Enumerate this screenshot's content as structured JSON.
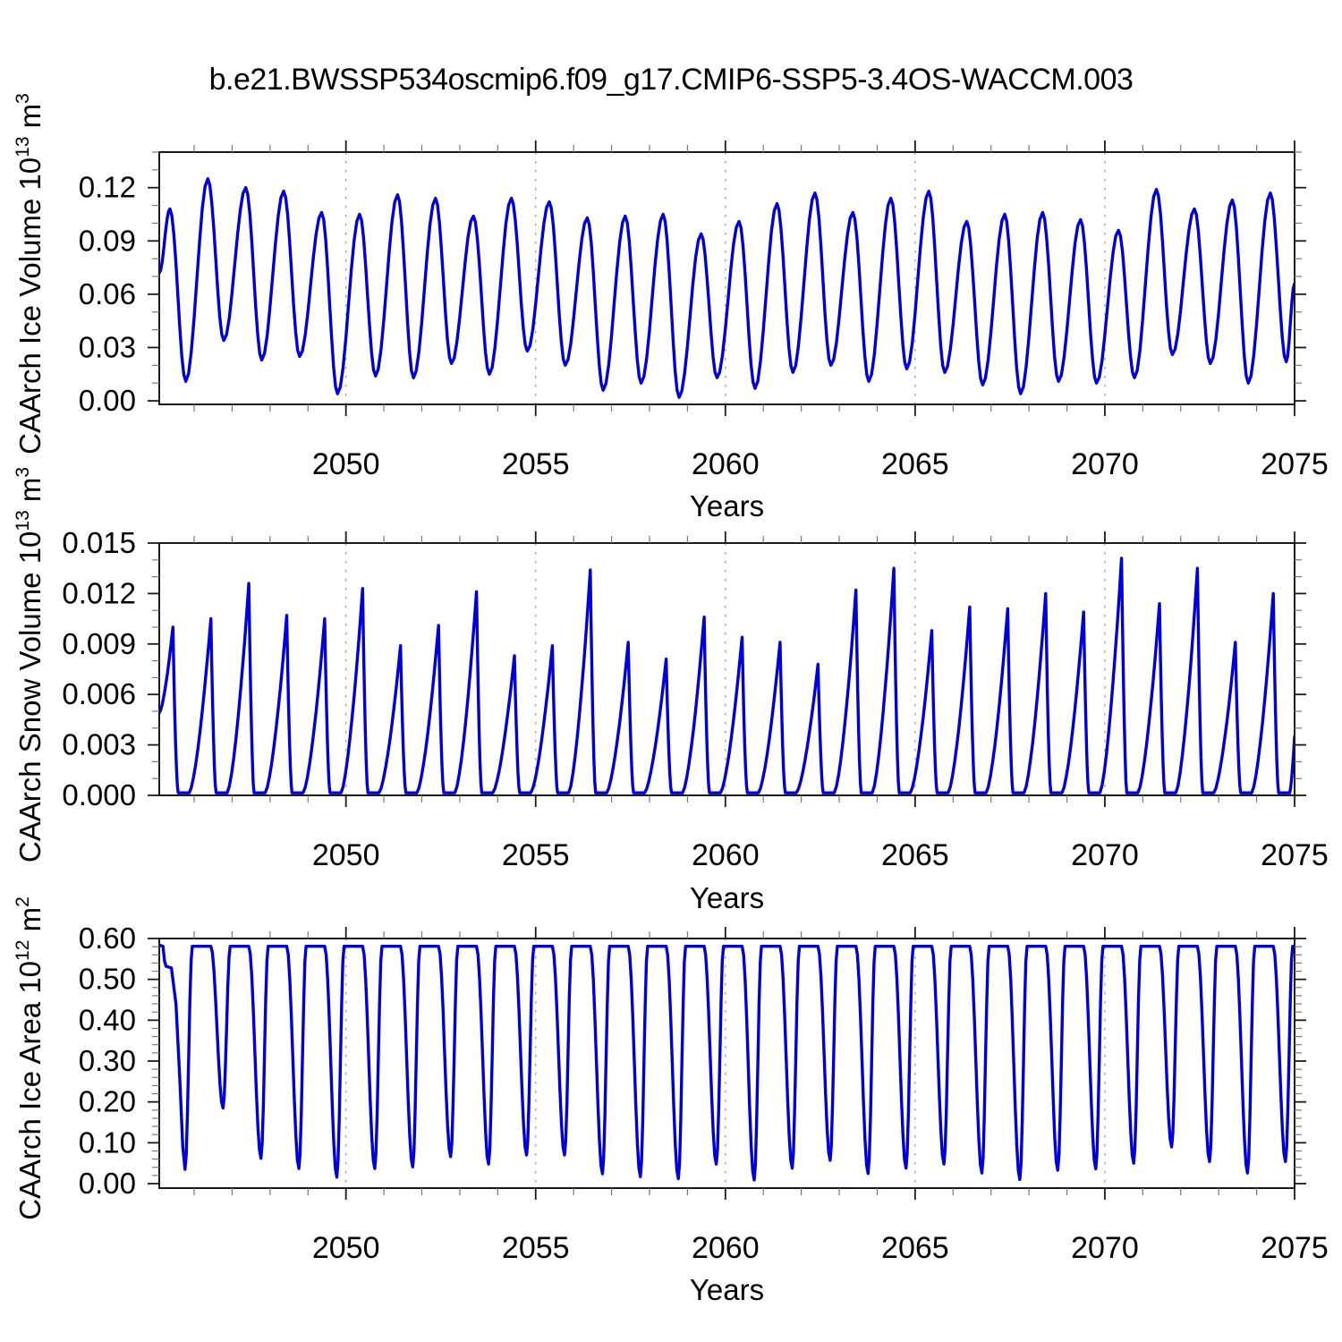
{
  "title": "b.e21.BWSSP534oscmip6.f09_g17.CMIP6-SSP5-3.4OS-WACCM.003",
  "line_color": "#0000dd",
  "grid_color": "#999999",
  "frame_color": "#1a1a1a",
  "minor_tick_color": "#777777",
  "chart_data": [
    {
      "type": "line",
      "title": "b.e21.BWSSP534oscmip6.f09_g17.CMIP6-SSP5-3.4OS-WACCM.003",
      "xlabel": "Years",
      "ylabel": "CAArch Ice Volume 10^13 m^3",
      "ylabel_parts": {
        "text": "CAArch Ice Volume 10",
        "sup1": "13",
        "text2": " m",
        "sup2": "3"
      },
      "xlim": [
        2045.08,
        2075.0
      ],
      "ylim": [
        -0.002,
        0.14
      ],
      "x_major_ticks": [
        2050,
        2055,
        2060,
        2065,
        2070,
        2075
      ],
      "x_tick_labels": [
        "2050",
        "2055",
        "2060",
        "2065",
        "2070",
        "2075"
      ],
      "x_minor_step": 1,
      "y_major_ticks": [
        0.0,
        0.03,
        0.06,
        0.09,
        0.12
      ],
      "y_tick_labels": [
        "0.00",
        "0.03",
        "0.06",
        "0.09",
        "0.12"
      ],
      "y_minor_step": 0.01,
      "grid_x": [
        2050,
        2055,
        2060,
        2065,
        2070
      ],
      "grid_on": "x-dashed",
      "legend": "none",
      "series": [
        {
          "name": "CAArch Ice Volume",
          "shape": "seasonal",
          "annual_cycle": {
            "years": [
              2045,
              2046,
              2047,
              2048,
              2049,
              2050,
              2051,
              2052,
              2053,
              2054,
              2055,
              2056,
              2057,
              2058,
              2059,
              2060,
              2061,
              2062,
              2063,
              2064,
              2065,
              2066,
              2067,
              2068,
              2069,
              2070,
              2071,
              2072,
              2073,
              2074
            ],
            "peak_frac": 0.36,
            "trough_frac": 0.78,
            "peaks": [
              0.108,
              0.125,
              0.12,
              0.118,
              0.106,
              0.105,
              0.116,
              0.114,
              0.104,
              0.114,
              0.112,
              0.103,
              0.104,
              0.105,
              0.094,
              0.101,
              0.111,
              0.117,
              0.106,
              0.114,
              0.118,
              0.101,
              0.105,
              0.106,
              0.102,
              0.096,
              0.119,
              0.108,
              0.113,
              0.117
            ],
            "troughs": [
              0.011,
              0.034,
              0.023,
              0.025,
              0.004,
              0.014,
              0.013,
              0.021,
              0.015,
              0.028,
              0.02,
              0.006,
              0.01,
              0.002,
              0.013,
              0.007,
              0.016,
              0.02,
              0.011,
              0.018,
              0.016,
              0.009,
              0.004,
              0.011,
              0.01,
              0.013,
              0.026,
              0.021,
              0.01,
              0.022
            ],
            "start": [
              2045.08,
              0.072
            ],
            "end": [
              2075.0,
              0.066
            ]
          }
        }
      ]
    },
    {
      "type": "line",
      "title": "",
      "xlabel": "Years",
      "ylabel": "CAArch Snow Volume 10^13 m^3",
      "ylabel_parts": {
        "text": "CAArch Snow Volume 10",
        "sup1": "13",
        "text2": " m",
        "sup2": "3"
      },
      "xlim": [
        2045.08,
        2075.0
      ],
      "ylim": [
        0.0,
        0.015
      ],
      "x_major_ticks": [
        2050,
        2055,
        2060,
        2065,
        2070,
        2075
      ],
      "x_tick_labels": [
        "2050",
        "2055",
        "2060",
        "2065",
        "2070",
        "2075"
      ],
      "x_minor_step": 1,
      "y_major_ticks": [
        0.0,
        0.003,
        0.006,
        0.009,
        0.012,
        0.015
      ],
      "y_tick_labels": [
        "0.000",
        "0.003",
        "0.006",
        "0.009",
        "0.012",
        "0.015"
      ],
      "y_minor_step": 0.001,
      "grid_x": [
        2050,
        2055,
        2060,
        2065,
        2070
      ],
      "grid_on": "x-dashed",
      "legend": "none",
      "series": [
        {
          "name": "CAArch Snow Volume",
          "shape": "spike",
          "annual_cycle": {
            "years": [
              2045,
              2046,
              2047,
              2048,
              2049,
              2050,
              2051,
              2052,
              2053,
              2054,
              2055,
              2056,
              2057,
              2058,
              2059,
              2060,
              2061,
              2062,
              2063,
              2064,
              2065,
              2066,
              2067,
              2068,
              2069,
              2070,
              2071,
              2072,
              2073,
              2074
            ],
            "peak_frac": 0.44,
            "fall_end_frac": 0.58,
            "rise_start_frac": -0.13,
            "zero_level": 0.00015,
            "peaks": [
              0.01,
              0.0105,
              0.0126,
              0.0107,
              0.0105,
              0.0123,
              0.0089,
              0.0101,
              0.0121,
              0.0083,
              0.0089,
              0.0134,
              0.0091,
              0.0081,
              0.0106,
              0.0094,
              0.0091,
              0.0078,
              0.0122,
              0.0135,
              0.0098,
              0.0112,
              0.0111,
              0.012,
              0.0109,
              0.0141,
              0.0114,
              0.0135,
              0.0091,
              0.012
            ],
            "start": [
              2045.08,
              0.0049
            ],
            "end": [
              2075.0,
              0.0035
            ]
          }
        }
      ]
    },
    {
      "type": "line",
      "title": "",
      "xlabel": "Years",
      "ylabel": "CAArch Ice Area 10^12 m^2",
      "ylabel_parts": {
        "text": "CAArch Ice Area 10",
        "sup1": "12",
        "text2": " m",
        "sup2": "2"
      },
      "xlim": [
        2045.08,
        2075.0
      ],
      "ylim": [
        -0.011,
        0.6
      ],
      "x_major_ticks": [
        2050,
        2055,
        2060,
        2065,
        2070,
        2075
      ],
      "x_tick_labels": [
        "2050",
        "2055",
        "2060",
        "2065",
        "2070",
        "2075"
      ],
      "x_minor_step": 1,
      "y_major_ticks": [
        0.0,
        0.1,
        0.2,
        0.3,
        0.4,
        0.5,
        0.6
      ],
      "y_tick_labels": [
        "0.00",
        "0.10",
        "0.20",
        "0.30",
        "0.40",
        "0.50",
        "0.60"
      ],
      "y_minor_step": 0.02,
      "grid_x": [
        2050,
        2055,
        2060,
        2065,
        2070
      ],
      "grid_on": "x-dashed",
      "legend": "none",
      "series": [
        {
          "name": "CAArch Ice Area",
          "shape": "plateau",
          "annual_cycle": {
            "years": [
              2045,
              2046,
              2047,
              2048,
              2049,
              2050,
              2051,
              2052,
              2053,
              2054,
              2055,
              2056,
              2057,
              2058,
              2059,
              2060,
              2061,
              2062,
              2063,
              2064,
              2065,
              2066,
              2067,
              2068,
              2069,
              2070,
              2071,
              2072,
              2073,
              2074
            ],
            "min_frac": 0.76,
            "fall_start_frac": 0.44,
            "rise_end_frac": 0.95,
            "plateau": 0.581,
            "minima": [
              0.035,
              0.185,
              0.062,
              0.037,
              0.016,
              0.037,
              0.041,
              0.066,
              0.048,
              0.07,
              0.07,
              0.024,
              0.017,
              0.012,
              0.048,
              0.009,
              0.038,
              0.057,
              0.025,
              0.038,
              0.048,
              0.026,
              0.01,
              0.033,
              0.036,
              0.05,
              0.09,
              0.054,
              0.026,
              0.054
            ],
            "start_points": [
              [
                2045.08,
                0.584
              ],
              [
                2045.18,
                0.581
              ],
              [
                2045.22,
                0.545
              ],
              [
                2045.26,
                0.532
              ],
              [
                2045.4,
                0.528
              ],
              [
                2045.52,
                0.44
              ],
              [
                2045.62,
                0.26
              ],
              [
                2045.7,
                0.09
              ],
              [
                2045.76,
                0.035
              ]
            ],
            "end": [
              2075.0,
              0.581
            ]
          }
        }
      ]
    }
  ]
}
